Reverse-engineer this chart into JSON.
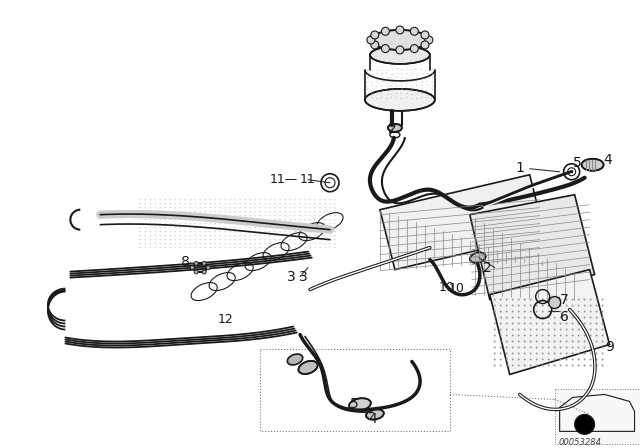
{
  "background_color": "#f5f5f0",
  "fig_width": 6.4,
  "fig_height": 4.48,
  "dpi": 100,
  "line_color": "#1a1a1a",
  "label_fontsize": 10,
  "label_fontsize_sm": 9,
  "catalog_num": "00053284",
  "parts": [
    "1",
    "2",
    "3",
    "4",
    "5",
    "6",
    "7",
    "8",
    "9",
    "10",
    "11",
    "12"
  ]
}
